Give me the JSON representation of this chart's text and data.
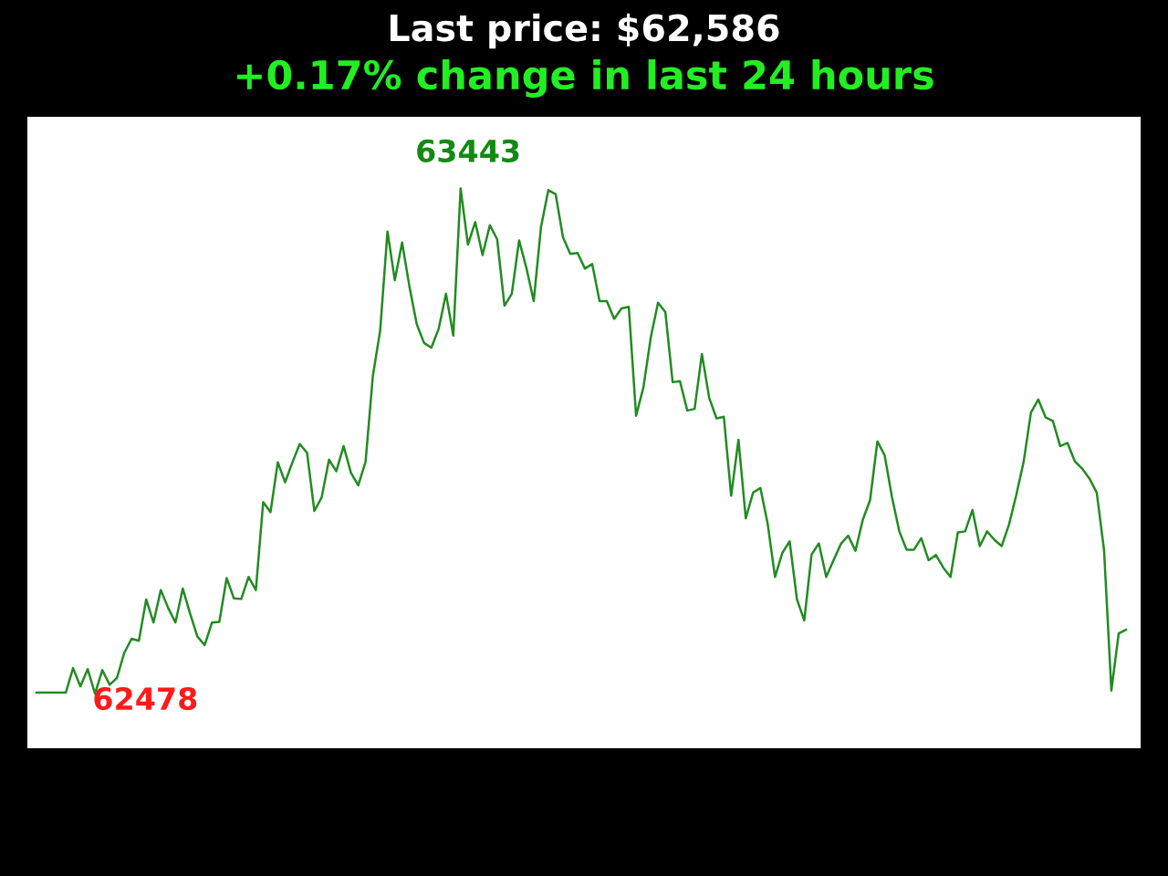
{
  "chart_data": {
    "type": "line",
    "title": "Last price: $62,586",
    "subtitle": "+0.17% change in last 24 hours",
    "categories": [
      null,
      null,
      null,
      null,
      null,
      null,
      null,
      null,
      null,
      null,
      null,
      null,
      null,
      null,
      null,
      null,
      null,
      null,
      null,
      null,
      null,
      null,
      null,
      null,
      null,
      null,
      null,
      null,
      null,
      null,
      null,
      null,
      null,
      null,
      null,
      null,
      null,
      null,
      null,
      null,
      null,
      null,
      null,
      null,
      null,
      null,
      null,
      null,
      null,
      null,
      null,
      null,
      null,
      null,
      null,
      null,
      null,
      null,
      null,
      null,
      null,
      null,
      null,
      null,
      null,
      null,
      null,
      null,
      null,
      null,
      null,
      null,
      null,
      null,
      null,
      null,
      null,
      null,
      null,
      null,
      null,
      null,
      null,
      null,
      null,
      null,
      null,
      null,
      null,
      null,
      null,
      null,
      null,
      null,
      null,
      null,
      null,
      null,
      null,
      null,
      null,
      null,
      null,
      null,
      null,
      null,
      null,
      null,
      null,
      null,
      null,
      null,
      null,
      null,
      null,
      null,
      null,
      null,
      null,
      null,
      null,
      null,
      null,
      null,
      null,
      null,
      null,
      null,
      null,
      null,
      null,
      null,
      null,
      null,
      null,
      null,
      null,
      null,
      null,
      null,
      null,
      null,
      null,
      null,
      null,
      null,
      null,
      null,
      null,
      null
    ],
    "series": [
      {
        "color": "#228b22",
        "values": [
          62480,
          62480,
          62480,
          62480,
          62480,
          62527,
          62492,
          62525,
          62478,
          62523,
          62495,
          62508,
          62556,
          62583,
          62579,
          62658,
          62614,
          62676,
          62642,
          62614,
          62679,
          62631,
          62587,
          62571,
          62614,
          62615,
          62699,
          62660,
          62659,
          62701,
          62676,
          62844,
          62825,
          62920,
          62882,
          62920,
          62955,
          62938,
          62827,
          62853,
          62925,
          62903,
          62951,
          62900,
          62876,
          62921,
          63085,
          63172,
          63361,
          63268,
          63340,
          63256,
          63184,
          63148,
          63139,
          63175,
          63242,
          63162,
          63443,
          63336,
          63379,
          63316,
          63373,
          63346,
          63219,
          63242,
          63344,
          63291,
          63228,
          63370,
          63440,
          63432,
          63350,
          63318,
          63320,
          63290,
          63299,
          63228,
          63228,
          63194,
          63214,
          63217,
          63009,
          63063,
          63158,
          63225,
          63207,
          63073,
          63075,
          63019,
          63022,
          63127,
          63043,
          63004,
          63007,
          62856,
          62963,
          62813,
          62862,
          62871,
          62802,
          62701,
          62747,
          62769,
          62658,
          62618,
          62744,
          62765,
          62701,
          62733,
          62764,
          62780,
          62751,
          62810,
          62848,
          62960,
          62933,
          62853,
          62788,
          62753,
          62753,
          62775,
          62733,
          62743,
          62719,
          62701,
          62786,
          62788,
          62829,
          62760,
          62788,
          62772,
          62760,
          62801,
          62858,
          62921,
          63015,
          63040,
          63006,
          62999,
          62951,
          62957,
          62922,
          62908,
          62889,
          62862,
          62752,
          62484,
          62593,
          62600
        ],
        "value_labels": [
          null,
          null,
          null,
          null,
          null,
          null,
          null,
          null,
          "62478",
          null,
          null,
          null,
          null,
          null,
          null,
          null,
          null,
          null,
          null,
          null,
          null,
          null,
          null,
          null,
          null,
          null,
          null,
          null,
          null,
          null,
          null,
          null,
          null,
          null,
          null,
          null,
          null,
          null,
          null,
          null,
          null,
          null,
          null,
          null,
          null,
          null,
          null,
          null,
          null,
          null,
          null,
          null,
          null,
          null,
          null,
          null,
          null,
          null,
          "63443",
          null,
          null,
          null,
          null,
          null,
          null,
          null,
          null,
          null,
          null,
          null,
          null,
          null,
          null,
          null,
          null,
          null,
          null,
          null,
          null,
          null,
          null,
          null,
          null,
          null,
          null,
          null,
          null,
          null,
          null,
          null,
          null,
          null,
          null,
          null,
          null,
          null,
          null,
          null,
          null,
          null,
          null,
          null,
          null,
          null,
          null,
          null,
          null,
          null,
          null,
          null,
          null,
          null,
          null,
          null,
          null,
          null,
          null,
          null,
          null,
          null,
          null,
          null,
          null,
          null,
          null,
          null,
          null,
          null,
          null,
          null,
          null,
          null,
          null,
          null,
          null,
          null,
          null,
          null,
          null,
          null,
          null,
          null,
          null,
          null,
          null,
          null,
          null,
          null,
          null,
          null
        ]
      }
    ]
  }
}
